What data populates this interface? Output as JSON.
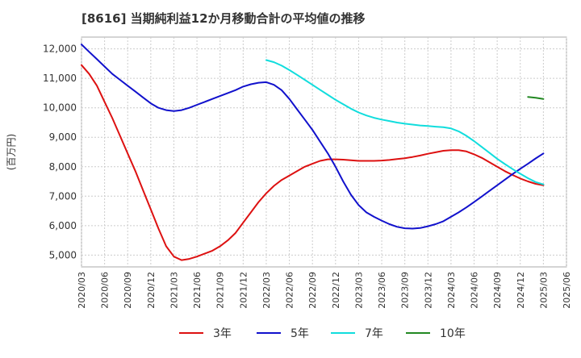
{
  "chart_data": {
    "type": "line",
    "title": "[8616]  当期純利益12か月移動合計の平均値の推移",
    "ylabel": "(百万円)",
    "xlabel": "",
    "ylim": [
      4600,
      12400
    ],
    "yticks": [
      5000,
      6000,
      7000,
      8000,
      9000,
      10000,
      11000,
      12000
    ],
    "ytick_labels": [
      "5,000",
      "6,000",
      "7,000",
      "8,000",
      "9,000",
      "10,000",
      "11,000",
      "12,000"
    ],
    "x_ticks": [
      "2020/03",
      "2020/06",
      "2020/09",
      "2020/12",
      "2021/03",
      "2021/06",
      "2021/09",
      "2021/12",
      "2022/03",
      "2022/06",
      "2022/09",
      "2022/12",
      "2023/03",
      "2023/06",
      "2023/09",
      "2023/12",
      "2024/03",
      "2024/06",
      "2024/09",
      "2024/12",
      "2025/03",
      "2025/06"
    ],
    "grid": true,
    "legend_position": "bottom",
    "series": [
      {
        "name": "3年",
        "color": "#dd1111",
        "points": [
          [
            "2020/03",
            11450
          ],
          [
            "2020/04",
            11150
          ],
          [
            "2020/05",
            10750
          ],
          [
            "2020/06",
            10200
          ],
          [
            "2020/07",
            9650
          ],
          [
            "2020/08",
            9050
          ],
          [
            "2020/09",
            8450
          ],
          [
            "2020/10",
            7850
          ],
          [
            "2020/11",
            7200
          ],
          [
            "2020/12",
            6550
          ],
          [
            "2021/01",
            5900
          ],
          [
            "2021/02",
            5300
          ],
          [
            "2021/03",
            4950
          ],
          [
            "2021/04",
            4830
          ],
          [
            "2021/05",
            4870
          ],
          [
            "2021/06",
            4950
          ],
          [
            "2021/07",
            5050
          ],
          [
            "2021/08",
            5150
          ],
          [
            "2021/09",
            5300
          ],
          [
            "2021/10",
            5500
          ],
          [
            "2021/11",
            5750
          ],
          [
            "2021/12",
            6100
          ],
          [
            "2022/01",
            6450
          ],
          [
            "2022/02",
            6800
          ],
          [
            "2022/03",
            7100
          ],
          [
            "2022/04",
            7350
          ],
          [
            "2022/05",
            7550
          ],
          [
            "2022/06",
            7700
          ],
          [
            "2022/07",
            7850
          ],
          [
            "2022/08",
            8000
          ],
          [
            "2022/09",
            8100
          ],
          [
            "2022/10",
            8200
          ],
          [
            "2022/11",
            8250
          ],
          [
            "2022/12",
            8250
          ],
          [
            "2023/01",
            8240
          ],
          [
            "2023/02",
            8220
          ],
          [
            "2023/03",
            8200
          ],
          [
            "2023/04",
            8200
          ],
          [
            "2023/05",
            8200
          ],
          [
            "2023/06",
            8210
          ],
          [
            "2023/07",
            8230
          ],
          [
            "2023/08",
            8260
          ],
          [
            "2023/09",
            8290
          ],
          [
            "2023/10",
            8330
          ],
          [
            "2023/11",
            8380
          ],
          [
            "2023/12",
            8440
          ],
          [
            "2024/01",
            8490
          ],
          [
            "2024/02",
            8540
          ],
          [
            "2024/03",
            8560
          ],
          [
            "2024/04",
            8560
          ],
          [
            "2024/05",
            8520
          ],
          [
            "2024/06",
            8420
          ],
          [
            "2024/07",
            8300
          ],
          [
            "2024/08",
            8150
          ],
          [
            "2024/09",
            8000
          ],
          [
            "2024/10",
            7850
          ],
          [
            "2024/11",
            7720
          ],
          [
            "2024/12",
            7600
          ],
          [
            "2025/01",
            7500
          ],
          [
            "2025/02",
            7420
          ],
          [
            "2025/03",
            7370
          ]
        ]
      },
      {
        "name": "5年",
        "color": "#1111cc",
        "points": [
          [
            "2020/03",
            12150
          ],
          [
            "2020/04",
            11900
          ],
          [
            "2020/05",
            11650
          ],
          [
            "2020/06",
            11400
          ],
          [
            "2020/07",
            11150
          ],
          [
            "2020/08",
            10950
          ],
          [
            "2020/09",
            10750
          ],
          [
            "2020/10",
            10550
          ],
          [
            "2020/11",
            10350
          ],
          [
            "2020/12",
            10150
          ],
          [
            "2021/01",
            10000
          ],
          [
            "2021/02",
            9920
          ],
          [
            "2021/03",
            9890
          ],
          [
            "2021/04",
            9920
          ],
          [
            "2021/05",
            10000
          ],
          [
            "2021/06",
            10100
          ],
          [
            "2021/07",
            10200
          ],
          [
            "2021/08",
            10300
          ],
          [
            "2021/09",
            10400
          ],
          [
            "2021/10",
            10500
          ],
          [
            "2021/11",
            10600
          ],
          [
            "2021/12",
            10720
          ],
          [
            "2022/01",
            10800
          ],
          [
            "2022/02",
            10850
          ],
          [
            "2022/03",
            10870
          ],
          [
            "2022/04",
            10780
          ],
          [
            "2022/05",
            10600
          ],
          [
            "2022/06",
            10300
          ],
          [
            "2022/07",
            9950
          ],
          [
            "2022/08",
            9600
          ],
          [
            "2022/09",
            9250
          ],
          [
            "2022/10",
            8850
          ],
          [
            "2022/11",
            8450
          ],
          [
            "2022/12",
            8000
          ],
          [
            "2023/01",
            7500
          ],
          [
            "2023/02",
            7050
          ],
          [
            "2023/03",
            6700
          ],
          [
            "2023/04",
            6450
          ],
          [
            "2023/05",
            6300
          ],
          [
            "2023/06",
            6170
          ],
          [
            "2023/07",
            6050
          ],
          [
            "2023/08",
            5960
          ],
          [
            "2023/09",
            5910
          ],
          [
            "2023/10",
            5900
          ],
          [
            "2023/11",
            5920
          ],
          [
            "2023/12",
            5980
          ],
          [
            "2024/01",
            6050
          ],
          [
            "2024/02",
            6150
          ],
          [
            "2024/03",
            6300
          ],
          [
            "2024/04",
            6450
          ],
          [
            "2024/05",
            6620
          ],
          [
            "2024/06",
            6800
          ],
          [
            "2024/07",
            6990
          ],
          [
            "2024/08",
            7180
          ],
          [
            "2024/09",
            7370
          ],
          [
            "2024/10",
            7560
          ],
          [
            "2024/11",
            7750
          ],
          [
            "2024/12",
            7930
          ],
          [
            "2025/01",
            8100
          ],
          [
            "2025/02",
            8280
          ],
          [
            "2025/03",
            8450
          ]
        ]
      },
      {
        "name": "7年",
        "color": "#11dddd",
        "points": [
          [
            "2022/03",
            11620
          ],
          [
            "2022/04",
            11550
          ],
          [
            "2022/05",
            11430
          ],
          [
            "2022/06",
            11280
          ],
          [
            "2022/07",
            11120
          ],
          [
            "2022/08",
            10950
          ],
          [
            "2022/09",
            10780
          ],
          [
            "2022/10",
            10610
          ],
          [
            "2022/11",
            10440
          ],
          [
            "2022/12",
            10270
          ],
          [
            "2023/01",
            10120
          ],
          [
            "2023/02",
            9970
          ],
          [
            "2023/03",
            9840
          ],
          [
            "2023/04",
            9740
          ],
          [
            "2023/05",
            9660
          ],
          [
            "2023/06",
            9600
          ],
          [
            "2023/07",
            9550
          ],
          [
            "2023/08",
            9500
          ],
          [
            "2023/09",
            9460
          ],
          [
            "2023/10",
            9430
          ],
          [
            "2023/11",
            9400
          ],
          [
            "2023/12",
            9380
          ],
          [
            "2024/01",
            9360
          ],
          [
            "2024/02",
            9340
          ],
          [
            "2024/03",
            9300
          ],
          [
            "2024/04",
            9200
          ],
          [
            "2024/05",
            9050
          ],
          [
            "2024/06",
            8870
          ],
          [
            "2024/07",
            8670
          ],
          [
            "2024/08",
            8470
          ],
          [
            "2024/09",
            8270
          ],
          [
            "2024/10",
            8090
          ],
          [
            "2024/11",
            7920
          ],
          [
            "2024/12",
            7760
          ],
          [
            "2025/01",
            7610
          ],
          [
            "2025/02",
            7480
          ],
          [
            "2025/03",
            7400
          ]
        ]
      },
      {
        "name": "10年",
        "color": "#228822",
        "points": [
          [
            "2025/01",
            10370
          ],
          [
            "2025/02",
            10340
          ],
          [
            "2025/03",
            10300
          ]
        ]
      }
    ]
  }
}
